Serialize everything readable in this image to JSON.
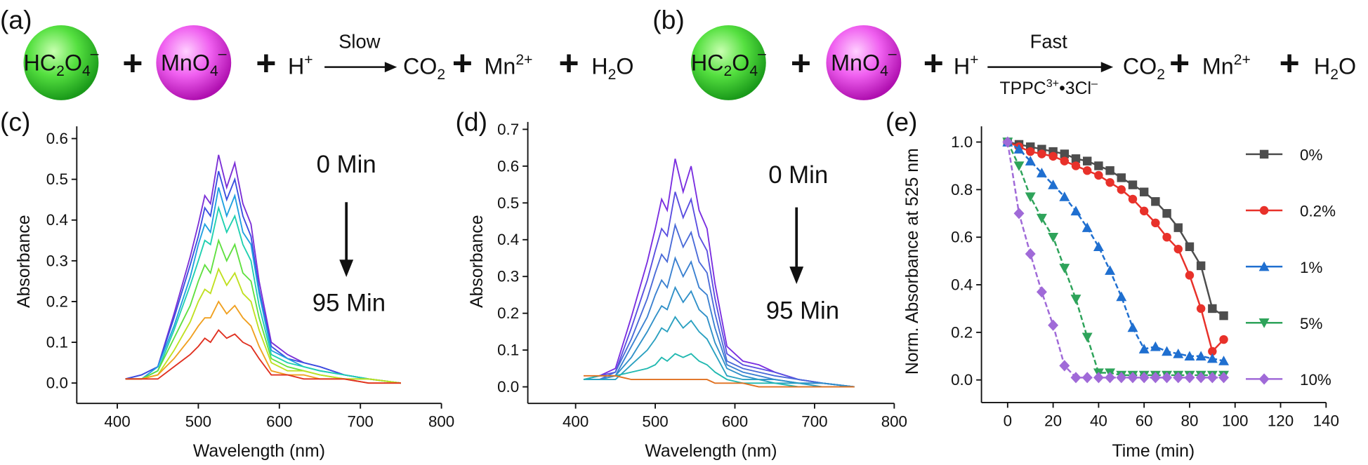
{
  "reaction_a": {
    "label": "(a)",
    "oxalate": [
      "HC",
      "2",
      "O",
      "4",
      "–"
    ],
    "permanganate": [
      "MnO",
      "4",
      "–"
    ],
    "plus": "+",
    "proton": [
      "H",
      "+"
    ],
    "condition_above": "Slow",
    "co2": [
      "CO",
      "2"
    ],
    "mn": [
      "Mn",
      "2+"
    ],
    "water": [
      "H",
      "2",
      "O"
    ]
  },
  "reaction_b": {
    "label": "(b)",
    "oxalate": [
      "HC",
      "2",
      "O",
      "4",
      "–"
    ],
    "permanganate": [
      "MnO",
      "4",
      "–"
    ],
    "plus": "+",
    "proton": [
      "H",
      "+"
    ],
    "condition_above": "Fast",
    "condition_below": [
      "TPPC",
      "3+",
      "•3Cl",
      "–"
    ],
    "co2": [
      "CO",
      "2"
    ],
    "mn": [
      "Mn",
      "2+"
    ],
    "water": [
      "H",
      "2",
      "O"
    ]
  },
  "chart_data": [
    {
      "type": "line",
      "panel_label": "(c)",
      "xlabel": "Wavelength (nm)",
      "ylabel": "Absorbance",
      "annotations": [
        "0 Min",
        "95 Min"
      ],
      "x": [
        410,
        430,
        450,
        470,
        490,
        500,
        508,
        515,
        525,
        535,
        545,
        555,
        565,
        575,
        590,
        610,
        630,
        650,
        680,
        710,
        750
      ],
      "xlim": [
        350,
        800
      ],
      "xticks": [
        400,
        500,
        600,
        700,
        800
      ],
      "ylim": [
        -0.05,
        0.63
      ],
      "yticks": [
        {
          "value": 0,
          "label": "0.0"
        },
        0.1,
        0.2,
        0.3,
        0.4,
        0.5,
        0.6
      ],
      "series": [
        {
          "color": "#7b2fd6",
          "values": [
            0.01,
            0.02,
            0.04,
            0.17,
            0.31,
            0.39,
            0.46,
            0.44,
            0.56,
            0.48,
            0.54,
            0.44,
            0.39,
            0.25,
            0.1,
            0.07,
            0.05,
            0.04,
            0.02,
            0.01,
            0.0
          ]
        },
        {
          "color": "#3a4fe0",
          "values": [
            0.01,
            0.02,
            0.04,
            0.16,
            0.29,
            0.36,
            0.43,
            0.41,
            0.52,
            0.45,
            0.5,
            0.41,
            0.36,
            0.23,
            0.09,
            0.06,
            0.05,
            0.04,
            0.02,
            0.01,
            0.0
          ]
        },
        {
          "color": "#1fa0e0",
          "values": [
            0.01,
            0.01,
            0.04,
            0.14,
            0.26,
            0.34,
            0.39,
            0.37,
            0.48,
            0.41,
            0.46,
            0.37,
            0.34,
            0.22,
            0.08,
            0.06,
            0.04,
            0.03,
            0.02,
            0.01,
            0.0
          ]
        },
        {
          "color": "#1fd0b0",
          "values": [
            0.01,
            0.01,
            0.03,
            0.13,
            0.24,
            0.3,
            0.35,
            0.34,
            0.43,
            0.37,
            0.41,
            0.34,
            0.3,
            0.19,
            0.07,
            0.05,
            0.04,
            0.03,
            0.02,
            0.01,
            0.0
          ]
        },
        {
          "color": "#60e040",
          "values": [
            0.01,
            0.01,
            0.03,
            0.11,
            0.19,
            0.25,
            0.29,
            0.27,
            0.35,
            0.3,
            0.34,
            0.27,
            0.25,
            0.16,
            0.06,
            0.04,
            0.03,
            0.02,
            0.01,
            0.01,
            0.0
          ]
        },
        {
          "color": "#c0e020",
          "values": [
            0.01,
            0.01,
            0.02,
            0.08,
            0.15,
            0.2,
            0.23,
            0.22,
            0.28,
            0.24,
            0.27,
            0.22,
            0.2,
            0.13,
            0.05,
            0.03,
            0.03,
            0.02,
            0.01,
            0.01,
            0.0
          ]
        },
        {
          "color": "#f0a020",
          "values": [
            0.01,
            0.01,
            0.02,
            0.06,
            0.11,
            0.14,
            0.16,
            0.16,
            0.2,
            0.17,
            0.19,
            0.16,
            0.14,
            0.09,
            0.03,
            0.02,
            0.02,
            0.01,
            0.01,
            0.0,
            0.0
          ]
        },
        {
          "color": "#e03020",
          "values": [
            0.01,
            0.01,
            0.01,
            0.04,
            0.07,
            0.09,
            0.11,
            0.1,
            0.13,
            0.11,
            0.12,
            0.1,
            0.09,
            0.06,
            0.02,
            0.02,
            0.01,
            0.01,
            0.01,
            0.0,
            0.0
          ]
        }
      ]
    },
    {
      "type": "line",
      "panel_label": "(d)",
      "xlabel": "Wavelength (nm)",
      "ylabel": "Absorbance",
      "annotations": [
        "0 Min",
        "95 Min"
      ],
      "x": [
        410,
        430,
        450,
        470,
        490,
        500,
        508,
        515,
        525,
        535,
        545,
        555,
        565,
        575,
        590,
        610,
        630,
        650,
        680,
        710,
        750
      ],
      "xlim": [
        340,
        800
      ],
      "xticks": [
        400,
        500,
        600,
        700,
        800
      ],
      "ylim": [
        -0.045,
        0.72
      ],
      "yticks": [
        {
          "value": 0,
          "label": "0.0"
        },
        0.1,
        0.2,
        0.3,
        0.4,
        0.5,
        0.6,
        0.7
      ],
      "series": [
        {
          "color": "#7a2ee0",
          "values": [
            0.02,
            0.03,
            0.05,
            0.19,
            0.34,
            0.43,
            0.51,
            0.48,
            0.62,
            0.53,
            0.6,
            0.48,
            0.43,
            0.28,
            0.11,
            0.07,
            0.06,
            0.04,
            0.02,
            0.01,
            0.0
          ]
        },
        {
          "color": "#5a4ee0",
          "values": [
            0.02,
            0.03,
            0.04,
            0.16,
            0.29,
            0.37,
            0.43,
            0.41,
            0.53,
            0.46,
            0.51,
            0.41,
            0.37,
            0.24,
            0.09,
            0.06,
            0.05,
            0.04,
            0.02,
            0.01,
            0.0
          ]
        },
        {
          "color": "#4a6ad8",
          "values": [
            0.02,
            0.02,
            0.04,
            0.13,
            0.24,
            0.31,
            0.36,
            0.34,
            0.44,
            0.38,
            0.42,
            0.34,
            0.31,
            0.2,
            0.07,
            0.05,
            0.04,
            0.03,
            0.02,
            0.01,
            0.0
          ]
        },
        {
          "color": "#3a80d0",
          "values": [
            0.02,
            0.02,
            0.03,
            0.11,
            0.19,
            0.25,
            0.29,
            0.27,
            0.35,
            0.3,
            0.34,
            0.27,
            0.25,
            0.16,
            0.06,
            0.04,
            0.03,
            0.02,
            0.01,
            0.01,
            0.0
          ]
        },
        {
          "color": "#3090c8",
          "values": [
            0.02,
            0.02,
            0.03,
            0.08,
            0.15,
            0.19,
            0.22,
            0.21,
            0.27,
            0.23,
            0.26,
            0.21,
            0.19,
            0.12,
            0.05,
            0.03,
            0.02,
            0.02,
            0.01,
            0.01,
            0.0
          ]
        },
        {
          "color": "#2aa0c0",
          "values": [
            0.02,
            0.02,
            0.02,
            0.06,
            0.1,
            0.13,
            0.16,
            0.15,
            0.19,
            0.16,
            0.18,
            0.15,
            0.13,
            0.09,
            0.03,
            0.02,
            0.02,
            0.01,
            0.01,
            0.0,
            0.0
          ]
        },
        {
          "color": "#20b8b0",
          "values": [
            0.02,
            0.03,
            0.03,
            0.04,
            0.05,
            0.06,
            0.08,
            0.07,
            0.09,
            0.08,
            0.09,
            0.07,
            0.06,
            0.04,
            0.02,
            0.01,
            0.01,
            0.01,
            0.0,
            0.0,
            0.0
          ]
        },
        {
          "color": "#e07020",
          "values": [
            0.03,
            0.03,
            0.03,
            0.02,
            0.02,
            0.02,
            0.02,
            0.02,
            0.02,
            0.02,
            0.02,
            0.02,
            0.02,
            0.01,
            0.01,
            0.01,
            0.0,
            0.0,
            0.0,
            0.0,
            0.0
          ]
        }
      ]
    },
    {
      "type": "line",
      "panel_label": "(e)",
      "xlabel": "Time (min)",
      "ylabel": "Norm. Absorbance at 525 nm",
      "x": [
        0,
        5,
        10,
        15,
        20,
        25,
        30,
        35,
        40,
        45,
        50,
        55,
        60,
        65,
        70,
        75,
        80,
        85,
        90,
        95
      ],
      "xlim": [
        -11.5,
        140
      ],
      "xticks": [
        0,
        20,
        40,
        60,
        80,
        100,
        120,
        140
      ],
      "ylim": [
        -0.095,
        1.066
      ],
      "yticks": [
        {
          "value": 0,
          "label": "0.0"
        },
        0.2,
        0.4,
        0.6,
        0.8,
        {
          "value": 1,
          "label": "1.0"
        }
      ],
      "legend": "right",
      "series": [
        {
          "name": "0%",
          "color": "#4d4d4d",
          "marker": "square",
          "linestyle": "solid",
          "values": [
            1.0,
            0.99,
            0.98,
            0.97,
            0.96,
            0.95,
            0.93,
            0.92,
            0.9,
            0.88,
            0.85,
            0.82,
            0.79,
            0.75,
            0.7,
            0.64,
            0.56,
            0.48,
            0.3,
            0.27
          ]
        },
        {
          "name": "0.2%",
          "color": "#e8312a",
          "marker": "circle",
          "linestyle": "solid",
          "values": [
            1.0,
            0.98,
            0.96,
            0.95,
            0.94,
            0.92,
            0.9,
            0.88,
            0.86,
            0.83,
            0.8,
            0.76,
            0.71,
            0.66,
            0.6,
            0.55,
            0.44,
            0.3,
            0.12,
            0.17
          ]
        },
        {
          "name": "1%",
          "color": "#1f6fd0",
          "marker": "triangle-up",
          "linestyle": "dashed",
          "values": [
            1.0,
            0.97,
            0.92,
            0.87,
            0.82,
            0.77,
            0.71,
            0.64,
            0.56,
            0.46,
            0.35,
            0.22,
            0.13,
            0.14,
            0.12,
            0.11,
            0.1,
            0.1,
            0.09,
            0.08
          ]
        },
        {
          "name": "5%",
          "color": "#2ea35a",
          "marker": "triangle-down",
          "linestyle": "dashed",
          "values": [
            1.0,
            0.9,
            0.77,
            0.68,
            0.6,
            0.47,
            0.34,
            0.18,
            0.03,
            0.03,
            0.02,
            0.02,
            0.02,
            0.02,
            0.02,
            0.02,
            0.02,
            0.02,
            0.02,
            0.02
          ]
        },
        {
          "name": "10%",
          "color": "#a06ad8",
          "marker": "diamond",
          "linestyle": "dashed",
          "values": [
            1.0,
            0.7,
            0.53,
            0.37,
            0.23,
            0.06,
            0.01,
            0.01,
            0.01,
            0.01,
            0.01,
            0.01,
            0.01,
            0.01,
            0.01,
            0.01,
            0.01,
            0.01,
            0.01,
            0.01
          ]
        }
      ]
    }
  ]
}
